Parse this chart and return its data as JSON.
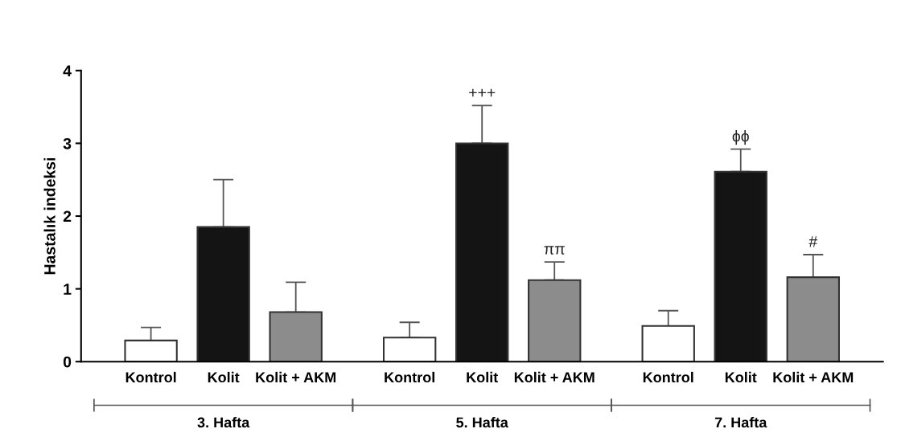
{
  "chart_data": {
    "type": "bar",
    "ylabel": "Hastalık indeksi",
    "categories": [
      "3. Hafta",
      "5. Hafta",
      "7. Hafta"
    ],
    "series": [
      {
        "name": "Kontrol",
        "color": "#ffffff",
        "values": [
          0.29,
          0.33,
          0.49
        ],
        "errors": [
          [
            0.29,
            0.47
          ],
          [
            0.33,
            0.54
          ],
          [
            0.49,
            0.7
          ]
        ]
      },
      {
        "name": "Kolit",
        "color": "#141414",
        "values": [
          1.85,
          3.0,
          2.61
        ],
        "errors": [
          [
            1.85,
            2.5
          ],
          [
            3.0,
            3.52
          ],
          [
            2.61,
            2.92
          ]
        ],
        "value_labels": [
          null,
          "+++",
          "ϕϕ"
        ]
      },
      {
        "name": "Kolit + AKM",
        "color": "#8c8c8c",
        "values": [
          0.68,
          1.12,
          1.16
        ],
        "errors": [
          [
            0.68,
            1.09
          ],
          [
            1.12,
            1.37
          ],
          [
            1.16,
            1.47
          ]
        ],
        "value_labels": [
          null,
          "ππ",
          "#"
        ]
      }
    ],
    "ylim": [
      0,
      4
    ],
    "yticks": [
      0,
      1,
      2,
      3,
      4
    ],
    "grid": false,
    "legend": false
  }
}
